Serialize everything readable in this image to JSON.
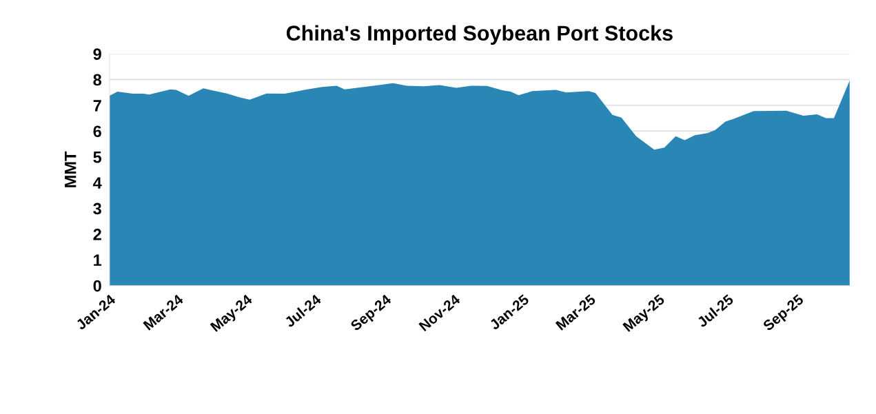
{
  "chart_data": {
    "type": "area",
    "title": "China's Imported Soybean Port Stocks",
    "ylabel": "MMT",
    "x": [
      "2024-01-01",
      "2024-01-08",
      "2024-01-22",
      "2024-01-31",
      "2024-02-05",
      "2024-02-24",
      "2024-02-29",
      "2024-03-11",
      "2024-03-24",
      "2024-04-01",
      "2024-04-14",
      "2024-04-25",
      "2024-05-04",
      "2024-05-19",
      "2024-06-04",
      "2024-06-24",
      "2024-07-07",
      "2024-07-20",
      "2024-07-27",
      "2024-08-18",
      "2024-09-08",
      "2024-09-20",
      "2024-10-05",
      "2024-10-19",
      "2024-11-03",
      "2024-11-16",
      "2024-11-30",
      "2024-12-14",
      "2024-12-21",
      "2024-12-28",
      "2025-01-09",
      "2025-01-30",
      "2025-02-08",
      "2025-02-28",
      "2025-03-06",
      "2025-03-21",
      "2025-03-29",
      "2025-04-11",
      "2025-04-27",
      "2025-05-06",
      "2025-05-16",
      "2025-05-24",
      "2025-06-02",
      "2025-06-13",
      "2025-06-20",
      "2025-06-29",
      "2025-07-06",
      "2025-07-24",
      "2025-08-22",
      "2025-09-06",
      "2025-09-18",
      "2025-09-26",
      "2025-10-03",
      "2025-10-17"
    ],
    "series": [
      {
        "color": "#2a86b5",
        "values": [
          7.37,
          7.53,
          7.45,
          7.45,
          7.42,
          7.62,
          7.6,
          7.37,
          7.66,
          7.58,
          7.46,
          7.31,
          7.22,
          7.46,
          7.45,
          7.62,
          7.71,
          7.76,
          7.62,
          7.74,
          7.86,
          7.76,
          7.74,
          7.79,
          7.68,
          7.76,
          7.75,
          7.58,
          7.53,
          7.39,
          7.55,
          7.6,
          7.5,
          7.55,
          7.48,
          6.63,
          6.52,
          5.8,
          5.28,
          5.36,
          5.8,
          5.65,
          5.84,
          5.92,
          6.04,
          6.37,
          6.47,
          6.78,
          6.79,
          6.6,
          6.65,
          6.5,
          6.5,
          7.97
        ]
      }
    ],
    "xlim": [
      "2024-01-01",
      "2025-10-17"
    ],
    "xticks": [
      {
        "value": "2024-01-01",
        "label": "Jan-24"
      },
      {
        "value": "2024-03-01",
        "label": "Mar-24"
      },
      {
        "value": "2024-05-01",
        "label": "May-24"
      },
      {
        "value": "2024-07-01",
        "label": "Jul-24"
      },
      {
        "value": "2024-09-01",
        "label": "Sep-24"
      },
      {
        "value": "2024-11-01",
        "label": "Nov-24"
      },
      {
        "value": "2025-01-01",
        "label": "Jan-25"
      },
      {
        "value": "2025-03-01",
        "label": "Mar-25"
      },
      {
        "value": "2025-05-01",
        "label": "May-25"
      },
      {
        "value": "2025-07-01",
        "label": "Jul-25"
      },
      {
        "value": "2025-09-01",
        "label": "Sep-25"
      }
    ],
    "ylim": [
      0,
      9
    ],
    "yticks": [
      0,
      1,
      2,
      3,
      4,
      5,
      6,
      7,
      8,
      9
    ],
    "grid": "y"
  }
}
